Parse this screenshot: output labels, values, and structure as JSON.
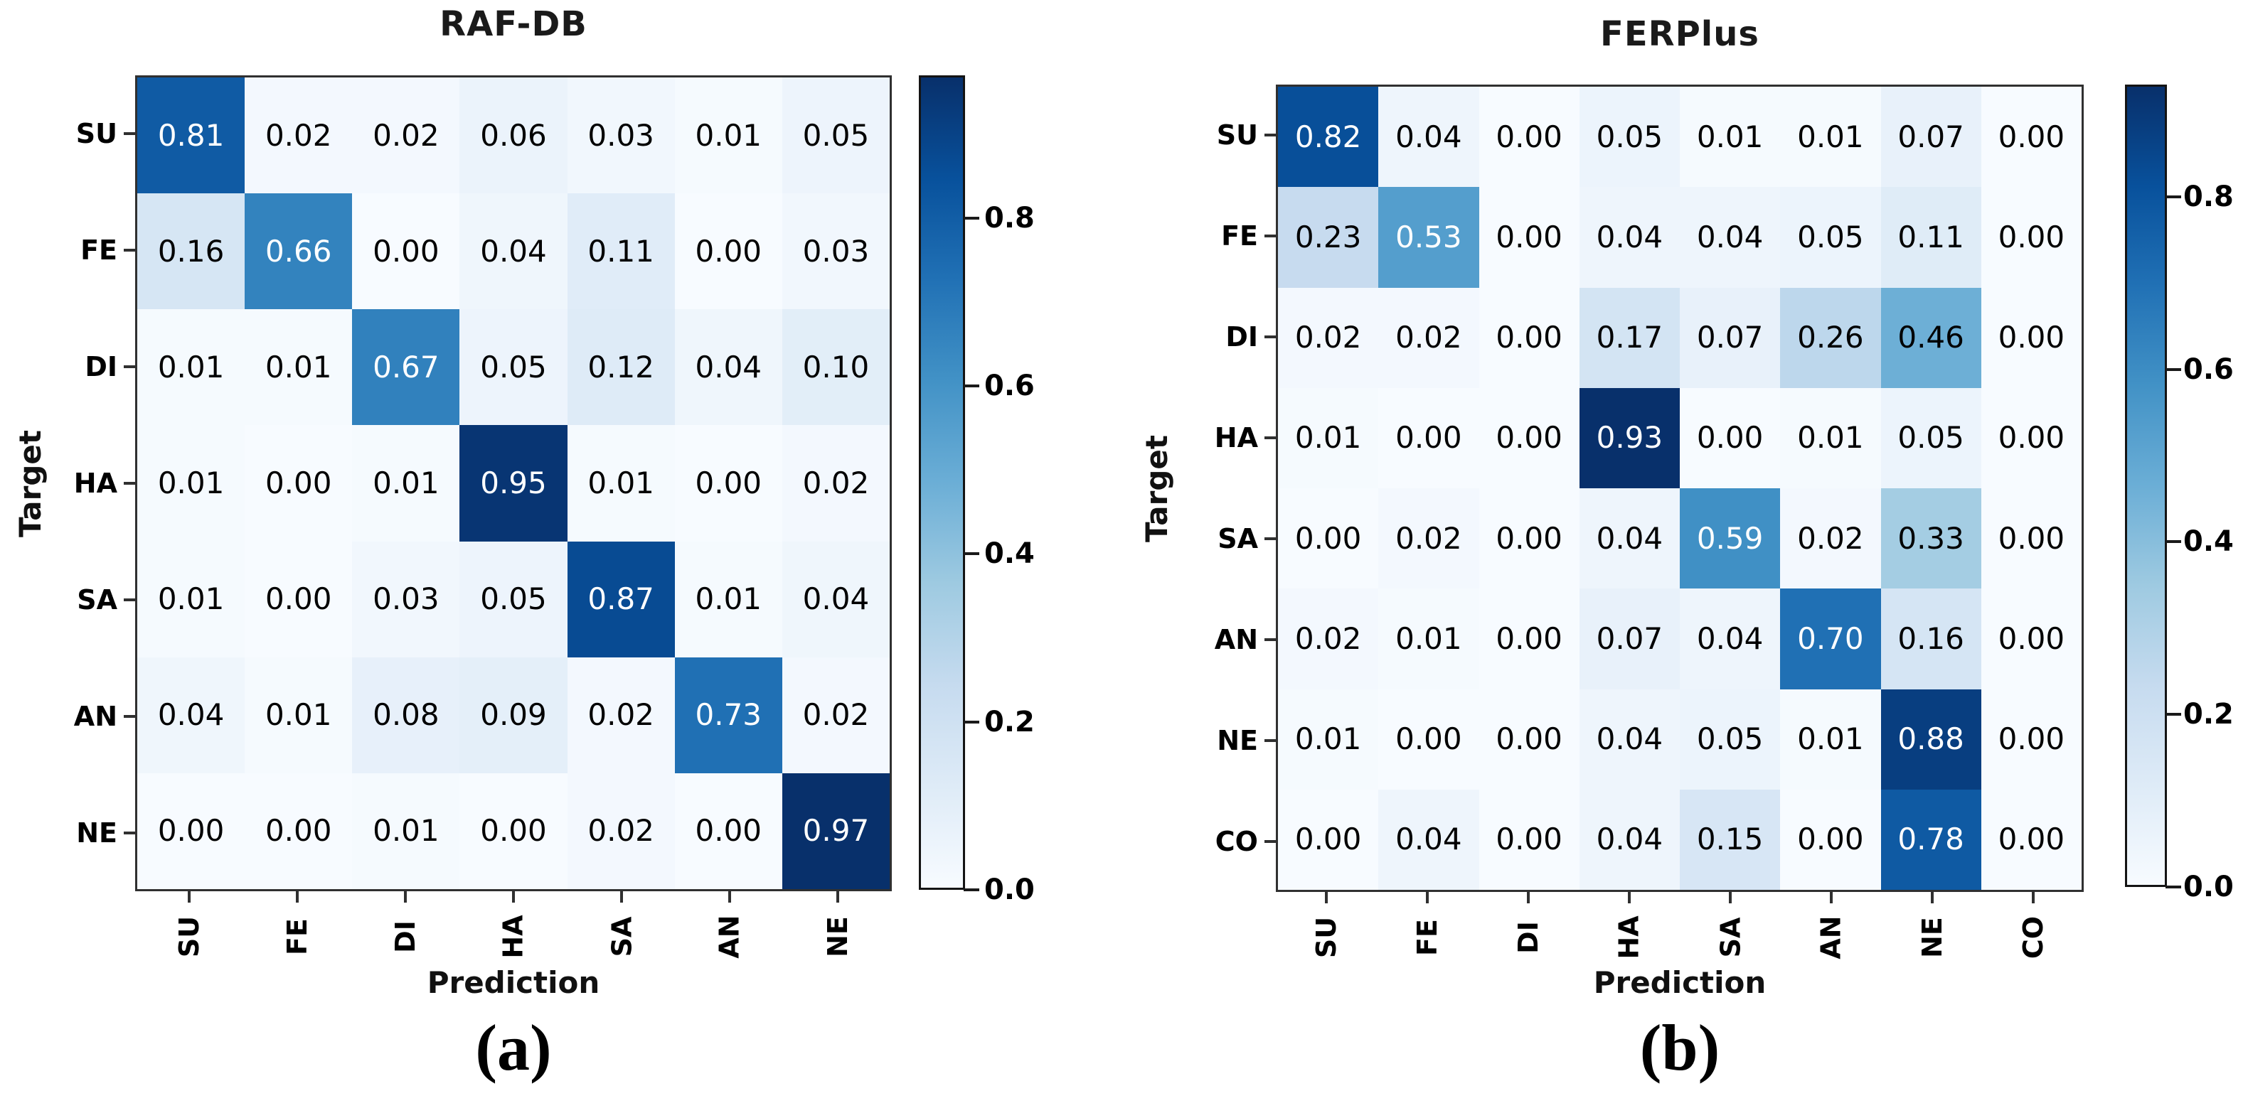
{
  "colors": {
    "colormap_low": "#f7fbff",
    "colormap_high": "#08306b",
    "axis_spine": "#303030",
    "cell_text_dark": "#000000",
    "cell_text_light": "#ffffff",
    "background": "#ffffff"
  },
  "chart_data": [
    {
      "type": "heatmap",
      "title": "RAF-DB",
      "caption": "(a)",
      "xlabel": "Prediction",
      "ylabel": "Target",
      "colormap": "Blues",
      "grid": false,
      "x_categories": [
        "SU",
        "FE",
        "DI",
        "HA",
        "SA",
        "AN",
        "NE"
      ],
      "y_categories": [
        "SU",
        "FE",
        "DI",
        "HA",
        "SA",
        "AN",
        "NE"
      ],
      "matrix": [
        [
          0.81,
          0.02,
          0.02,
          0.06,
          0.03,
          0.01,
          0.05
        ],
        [
          0.16,
          0.66,
          0.0,
          0.04,
          0.11,
          0.0,
          0.03
        ],
        [
          0.01,
          0.01,
          0.67,
          0.05,
          0.12,
          0.04,
          0.1
        ],
        [
          0.01,
          0.0,
          0.01,
          0.95,
          0.01,
          0.0,
          0.02
        ],
        [
          0.01,
          0.0,
          0.03,
          0.05,
          0.87,
          0.01,
          0.04
        ],
        [
          0.04,
          0.01,
          0.08,
          0.09,
          0.02,
          0.73,
          0.02
        ],
        [
          0.0,
          0.0,
          0.01,
          0.0,
          0.02,
          0.0,
          0.97
        ]
      ],
      "vmin": 0.0,
      "vmax": 0.97,
      "colorbar_position": "right",
      "colorbar_ticks": [
        0.8,
        0.6,
        0.4,
        0.2,
        0.0
      ]
    },
    {
      "type": "heatmap",
      "title": "FERPlus",
      "caption": "(b)",
      "xlabel": "Prediction",
      "ylabel": "Target",
      "colormap": "Blues",
      "grid": false,
      "x_categories": [
        "SU",
        "FE",
        "DI",
        "HA",
        "SA",
        "AN",
        "NE",
        "CO"
      ],
      "y_categories": [
        "SU",
        "FE",
        "DI",
        "HA",
        "SA",
        "AN",
        "NE",
        "CO"
      ],
      "matrix": [
        [
          0.82,
          0.04,
          0.0,
          0.05,
          0.01,
          0.01,
          0.07,
          0.0
        ],
        [
          0.23,
          0.53,
          0.0,
          0.04,
          0.04,
          0.05,
          0.11,
          0.0
        ],
        [
          0.02,
          0.02,
          0.0,
          0.17,
          0.07,
          0.26,
          0.46,
          0.0
        ],
        [
          0.01,
          0.0,
          0.0,
          0.93,
          0.0,
          0.01,
          0.05,
          0.0
        ],
        [
          0.0,
          0.02,
          0.0,
          0.04,
          0.59,
          0.02,
          0.33,
          0.0
        ],
        [
          0.02,
          0.01,
          0.0,
          0.07,
          0.04,
          0.7,
          0.16,
          0.0
        ],
        [
          0.01,
          0.0,
          0.0,
          0.04,
          0.05,
          0.01,
          0.88,
          0.0
        ],
        [
          0.0,
          0.04,
          0.0,
          0.04,
          0.15,
          0.0,
          0.78,
          0.0
        ]
      ],
      "vmin": 0.0,
      "vmax": 0.93,
      "colorbar_position": "right",
      "colorbar_ticks": [
        0.8,
        0.6,
        0.4,
        0.2,
        0.0
      ]
    }
  ]
}
